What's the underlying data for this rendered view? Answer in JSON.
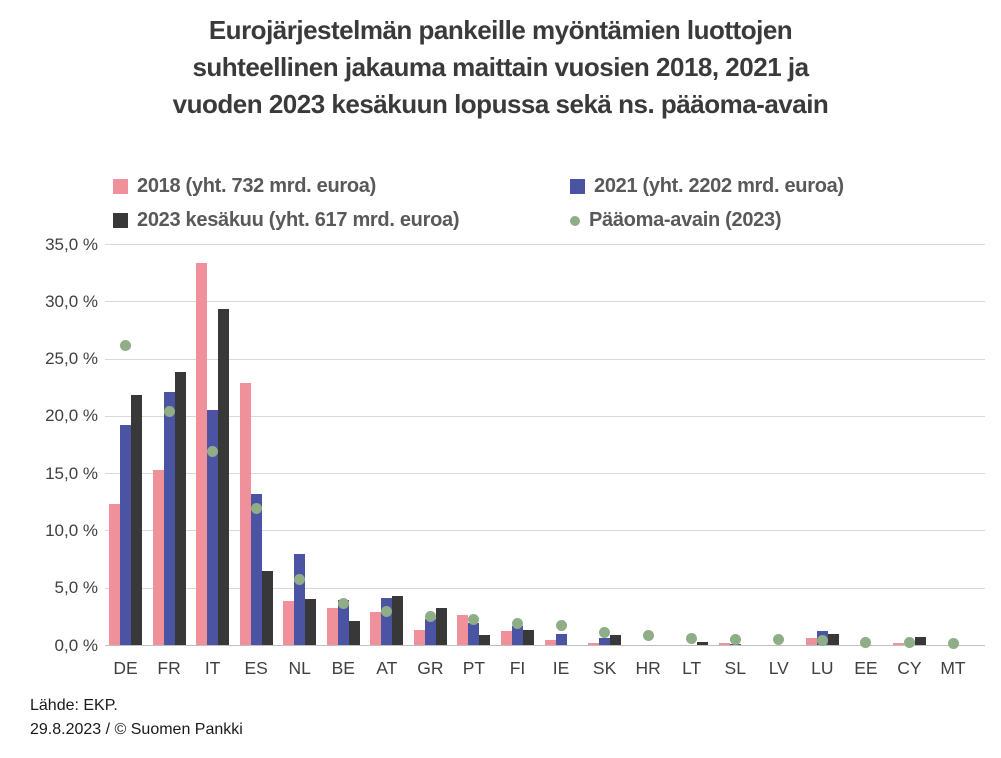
{
  "title": {
    "line1": "Eurojärjestelmän pankeille myöntämien luottojen",
    "line2": "suhteellinen jakauma maittain vuosien 2018, 2021 ja",
    "line3": "vuoden 2023 kesäkuun lopussa sekä ns. pääoma-avain"
  },
  "legend": {
    "items": [
      {
        "id": "y2018",
        "label": "2018 (yht. 732 mrd. euroa)",
        "marker": "square",
        "color": "#f0909a"
      },
      {
        "id": "y2021",
        "label": "2021 (yht. 2202 mrd. euroa)",
        "marker": "square",
        "color": "#4a54a3"
      },
      {
        "id": "y2023",
        "label": "2023 kesäkuu (yht. 617 mrd. euroa)",
        "marker": "square",
        "color": "#383838"
      },
      {
        "id": "capkey",
        "label": "Pääoma-avain (2023)",
        "marker": "dot",
        "color": "#8fad86"
      }
    ]
  },
  "chart_data": {
    "type": "bar",
    "title": "Eurojärjestelmän pankeille myöntämien luottojen suhteellinen jakauma maittain vuosien 2018, 2021 ja vuoden 2023 kesäkuun lopussa sekä ns. pääoma-avain",
    "categories": [
      "DE",
      "FR",
      "IT",
      "ES",
      "NL",
      "BE",
      "AT",
      "GR",
      "PT",
      "FI",
      "IE",
      "SK",
      "HR",
      "LT",
      "SL",
      "LV",
      "LU",
      "EE",
      "CY",
      "MT"
    ],
    "series": [
      {
        "name": "2018 (yht. 732 mrd. euroa)",
        "type": "bar",
        "color": "#f0909a",
        "values": [
          12.3,
          15.3,
          33.3,
          22.9,
          3.8,
          3.2,
          2.9,
          1.3,
          2.6,
          1.2,
          0.4,
          0.2,
          0,
          0,
          0.15,
          0,
          0.6,
          0,
          0.2,
          0
        ]
      },
      {
        "name": "2021 (yht. 2202 mrd. euroa)",
        "type": "bar",
        "color": "#4a54a3",
        "values": [
          19.2,
          22.1,
          20.5,
          13.2,
          7.9,
          3.9,
          4.1,
          2.3,
          1.9,
          1.7,
          1.0,
          0.6,
          0,
          0,
          0.1,
          0,
          1.2,
          0,
          0,
          0
        ]
      },
      {
        "name": "2023 kesäkuu (yht. 617 mrd. euroa)",
        "type": "bar",
        "color": "#383838",
        "values": [
          21.8,
          23.8,
          29.3,
          6.5,
          4.0,
          2.1,
          4.3,
          3.2,
          0.85,
          1.3,
          0,
          0.9,
          0,
          0.3,
          0,
          0,
          1.0,
          0,
          0.7,
          0
        ]
      },
      {
        "name": "Pääoma-avain (2023)",
        "type": "scatter",
        "color": "#8fad86",
        "values": [
          26.1,
          20.4,
          16.9,
          11.9,
          5.7,
          3.6,
          2.9,
          2.5,
          2.2,
          1.9,
          1.7,
          1.1,
          0.85,
          0.6,
          0.5,
          0.45,
          0.35,
          0.25,
          0.2,
          0.1
        ]
      }
    ],
    "ylim": [
      0,
      35
    ],
    "y_tick_step": 5,
    "y_tick_labels": [
      "0,0 %",
      "5,0 %",
      "10,0 %",
      "15,0 %",
      "20,0 %",
      "25,0 %",
      "30,0 %",
      "35,0 %"
    ],
    "xlabel": "",
    "ylabel": "",
    "grid": true,
    "legend_position": "top"
  },
  "footer": {
    "source": "Lähde: EKP.",
    "copyright": "29.8.2023 / © Suomen Pankki"
  },
  "colors": {
    "bar_2018": "#f0909a",
    "bar_2021": "#4a54a3",
    "bar_2023": "#383838",
    "capital_key_dot": "#8fad86",
    "gridline": "#d9d9d9",
    "axis_line": "#bfbfbf",
    "title_text": "#3a3a3a",
    "legend_text": "#595959",
    "tick_text": "#404040"
  }
}
